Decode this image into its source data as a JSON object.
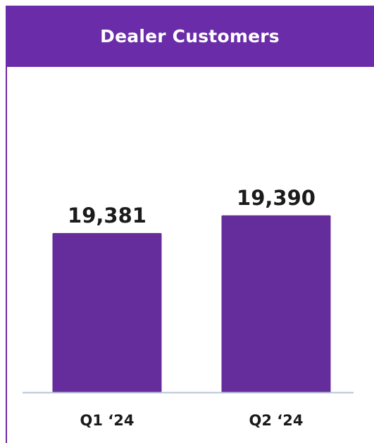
{
  "header": {
    "title": "Dealer Customers"
  },
  "colors": {
    "brand_purple": "#652c9c",
    "header_purple": "#6a2ca8",
    "baseline": "#b6c3d6",
    "text": "#1b1b1b"
  },
  "chart_data": {
    "type": "bar",
    "title": "Dealer Customers",
    "categories": [
      "Q1 ‘24",
      "Q2 ‘24"
    ],
    "values": [
      19381,
      19390
    ],
    "value_labels": [
      "19,381",
      "19,390"
    ],
    "xlabel": "",
    "ylabel": "",
    "grid": false,
    "legend": "none"
  }
}
